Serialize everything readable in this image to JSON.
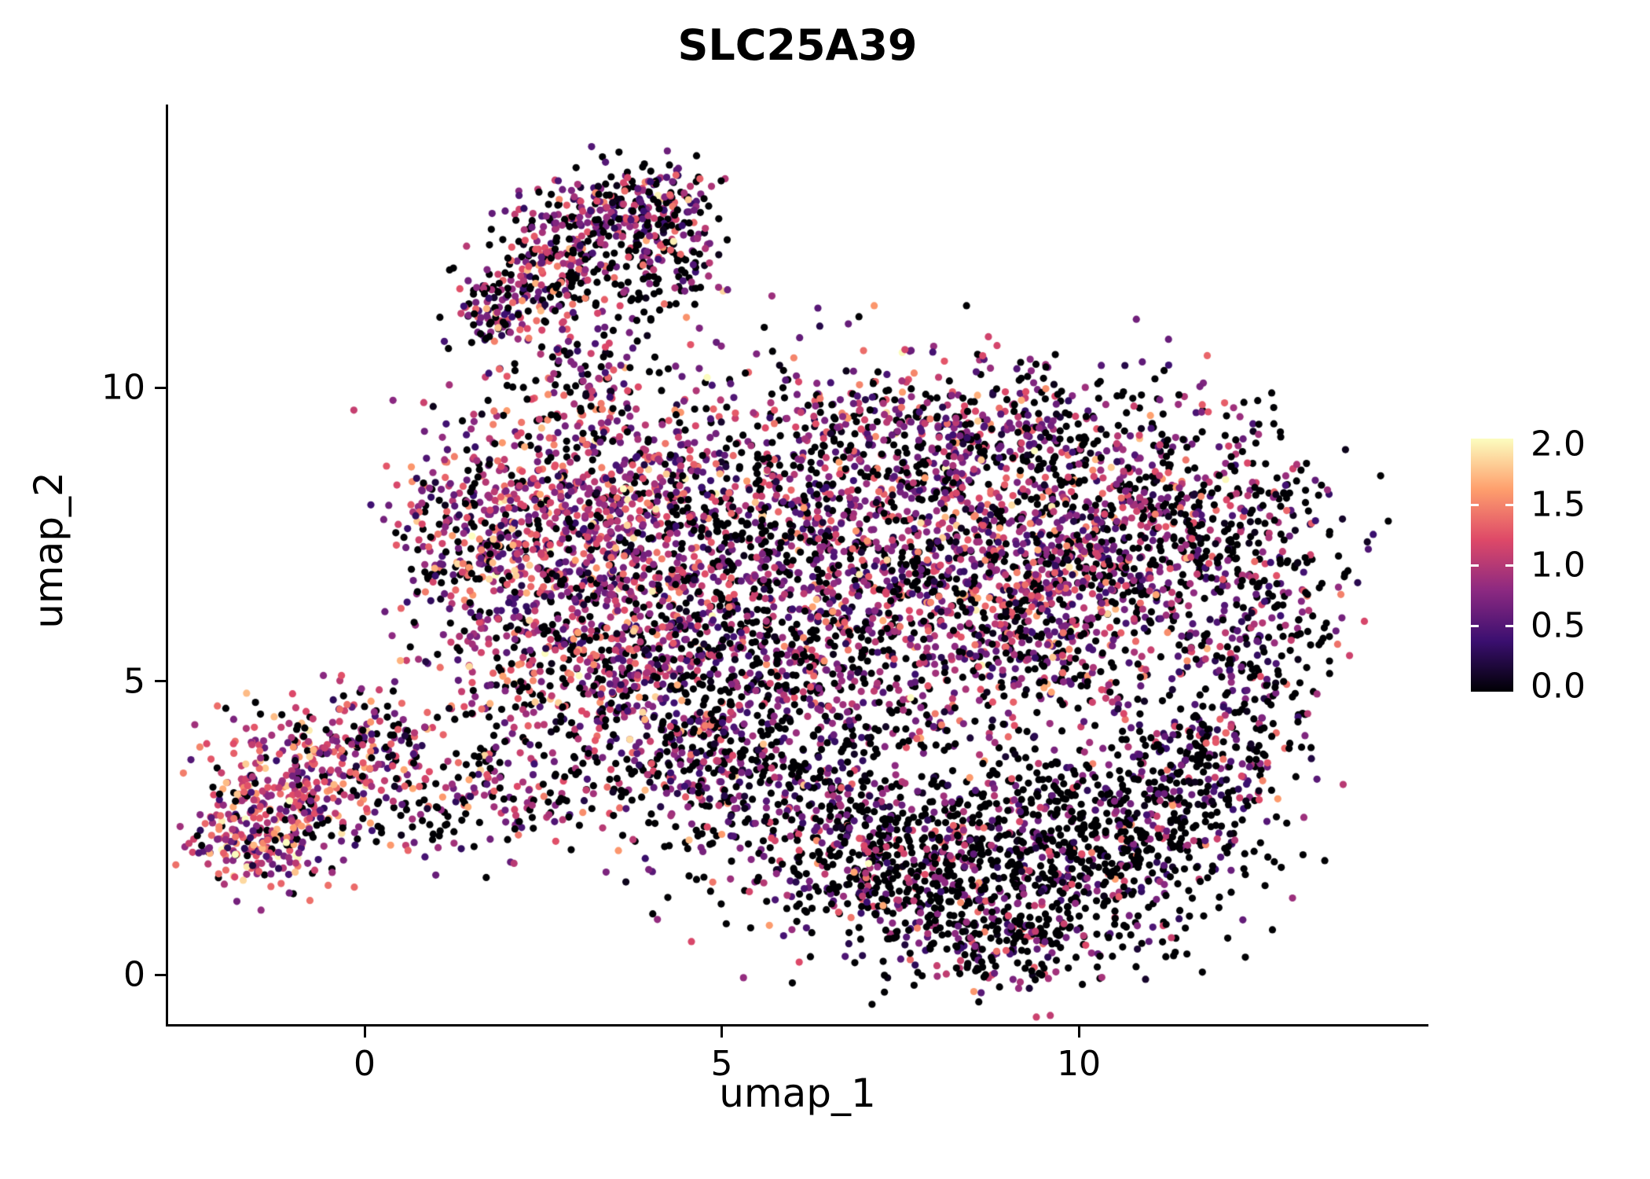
{
  "chart_data": {
    "type": "scatter",
    "subtype": "umap-feature-plot",
    "title": "SLC25A39",
    "xlabel": "umap_1",
    "ylabel": "umap_2",
    "xlim": [
      -2.75,
      14.85
    ],
    "ylim": [
      -0.8,
      14.8
    ],
    "xticks": {
      "values": [
        0,
        5,
        10
      ],
      "labels": [
        "0",
        "5",
        "10"
      ]
    },
    "yticks": {
      "values": [
        0,
        5,
        10
      ],
      "labels": [
        "0",
        "5",
        "10"
      ]
    },
    "grid": false,
    "legend_position": "right",
    "point_radius_px": 4.6,
    "seed": 42,
    "colorbar": {
      "vmin": 0.0,
      "vmax": 2.0,
      "tick_values": [
        0.0,
        0.5,
        1.0,
        1.5,
        2.0
      ],
      "tick_labels": [
        "0.0",
        "0.5",
        "1.0",
        "1.5",
        "2.0"
      ],
      "colormap": "magma",
      "stops": [
        {
          "t": 0.0,
          "color": "#000004"
        },
        {
          "t": 0.2,
          "color": "#3B0F70"
        },
        {
          "t": 0.4,
          "color": "#8C2981"
        },
        {
          "t": 0.6,
          "color": "#DE4968"
        },
        {
          "t": 0.8,
          "color": "#FE9F6D"
        },
        {
          "t": 1.0,
          "color": "#FCFDBF"
        }
      ]
    },
    "clusters": [
      {
        "region": "left-island-core",
        "cx": -1.35,
        "cy": 2.85,
        "sx": 0.55,
        "sy": 0.72,
        "n": 260,
        "zero_frac": 0.15,
        "mean": 1.05,
        "sd": 0.42
      },
      {
        "region": "left-island-upper",
        "cx": -0.45,
        "cy": 3.45,
        "sx": 0.6,
        "sy": 0.55,
        "n": 170,
        "zero_frac": 0.18,
        "mean": 1.0,
        "sd": 0.42
      },
      {
        "region": "left-island-fringe",
        "cx": 0.2,
        "cy": 4.1,
        "sx": 0.45,
        "sy": 0.38,
        "n": 70,
        "zero_frac": 0.35,
        "mean": 0.9,
        "sd": 0.4
      },
      {
        "region": "left-island-lower",
        "cx": -1.6,
        "cy": 2.2,
        "sx": 0.45,
        "sy": 0.4,
        "n": 90,
        "zero_frac": 0.15,
        "mean": 1.1,
        "sd": 0.45
      },
      {
        "region": "top-arm-base",
        "cx": 1.75,
        "cy": 11.3,
        "sx": 0.33,
        "sy": 0.33,
        "n": 90,
        "zero_frac": 0.3,
        "mean": 0.85,
        "sd": 0.4
      },
      {
        "region": "top-arm-mid",
        "cx": 2.45,
        "cy": 12.0,
        "sx": 0.42,
        "sy": 0.5,
        "n": 150,
        "zero_frac": 0.28,
        "mean": 0.9,
        "sd": 0.42
      },
      {
        "region": "top-arm-upper",
        "cx": 3.2,
        "cy": 12.85,
        "sx": 0.5,
        "sy": 0.42,
        "n": 170,
        "zero_frac": 0.3,
        "mean": 0.85,
        "sd": 0.42
      },
      {
        "region": "top-arm-tip",
        "cx": 4.0,
        "cy": 13.1,
        "sx": 0.45,
        "sy": 0.33,
        "n": 130,
        "zero_frac": 0.32,
        "mean": 0.85,
        "sd": 0.4
      },
      {
        "region": "top-arm-hook",
        "cx": 4.4,
        "cy": 12.35,
        "sx": 0.33,
        "sy": 0.45,
        "n": 90,
        "zero_frac": 0.4,
        "mean": 0.8,
        "sd": 0.4
      },
      {
        "region": "top-arm-scatter",
        "cx": 3.7,
        "cy": 11.7,
        "sx": 0.55,
        "sy": 0.45,
        "n": 70,
        "zero_frac": 0.65,
        "mean": 0.7,
        "sd": 0.35
      },
      {
        "region": "neck",
        "cx": 2.95,
        "cy": 10.4,
        "sx": 0.5,
        "sy": 0.5,
        "n": 80,
        "zero_frac": 0.45,
        "mean": 0.8,
        "sd": 0.4
      },
      {
        "region": "main-left-upper",
        "cx": 3.0,
        "cy": 7.9,
        "sx": 1.05,
        "sy": 1.1,
        "n": 850,
        "zero_frac": 0.22,
        "mean": 0.95,
        "sd": 0.42
      },
      {
        "region": "main-left-lower",
        "cx": 3.3,
        "cy": 5.6,
        "sx": 1.1,
        "sy": 0.95,
        "n": 550,
        "zero_frac": 0.3,
        "mean": 0.9,
        "sd": 0.42
      },
      {
        "region": "main-left-edge",
        "cx": 1.35,
        "cy": 7.2,
        "sx": 0.5,
        "sy": 0.85,
        "n": 160,
        "zero_frac": 0.25,
        "mean": 1.0,
        "sd": 0.42
      },
      {
        "region": "main-center",
        "cx": 5.8,
        "cy": 7.3,
        "sx": 1.35,
        "sy": 1.45,
        "n": 900,
        "zero_frac": 0.38,
        "mean": 0.8,
        "sd": 0.4
      },
      {
        "region": "main-center-lower",
        "cx": 5.8,
        "cy": 4.9,
        "sx": 1.3,
        "sy": 0.9,
        "n": 420,
        "zero_frac": 0.45,
        "mean": 0.75,
        "sd": 0.38
      },
      {
        "region": "main-right-dense",
        "cx": 8.6,
        "cy": 7.5,
        "sx": 1.45,
        "sy": 1.3,
        "n": 1100,
        "zero_frac": 0.3,
        "mean": 0.9,
        "sd": 0.42
      },
      {
        "region": "main-top",
        "cx": 8.2,
        "cy": 9.5,
        "sx": 1.8,
        "sy": 0.5,
        "n": 300,
        "zero_frac": 0.45,
        "mean": 0.75,
        "sd": 0.38
      },
      {
        "region": "main-right-lobe",
        "cx": 11.0,
        "cy": 7.7,
        "sx": 1.0,
        "sy": 0.95,
        "n": 420,
        "zero_frac": 0.45,
        "mean": 0.78,
        "sd": 0.4
      },
      {
        "region": "main-far-right",
        "cx": 12.6,
        "cy": 6.3,
        "sx": 0.65,
        "sy": 1.35,
        "n": 330,
        "zero_frac": 0.52,
        "mean": 0.72,
        "sd": 0.38
      },
      {
        "region": "main-mid-right",
        "cx": 9.6,
        "cy": 5.9,
        "sx": 1.0,
        "sy": 0.85,
        "n": 380,
        "zero_frac": 0.35,
        "mean": 0.9,
        "sd": 0.42
      },
      {
        "region": "bottom-right-dark",
        "cx": 8.9,
        "cy": 1.9,
        "sx": 1.6,
        "sy": 1.0,
        "n": 850,
        "zero_frac": 0.66,
        "mean": 0.75,
        "sd": 0.38
      },
      {
        "region": "bottom-right-mid",
        "cx": 10.7,
        "cy": 2.7,
        "sx": 0.9,
        "sy": 0.8,
        "n": 300,
        "zero_frac": 0.62,
        "mean": 0.72,
        "sd": 0.38
      },
      {
        "region": "right-arc",
        "cx": 11.8,
        "cy": 3.7,
        "sx": 0.6,
        "sy": 0.7,
        "n": 170,
        "zero_frac": 0.55,
        "mean": 0.72,
        "sd": 0.38
      },
      {
        "region": "bottom-center",
        "cx": 6.3,
        "cy": 2.9,
        "sx": 1.3,
        "sy": 0.7,
        "n": 330,
        "zero_frac": 0.5,
        "mean": 0.8,
        "sd": 0.4
      },
      {
        "region": "bottom-center-low",
        "cx": 7.4,
        "cy": 1.6,
        "sx": 0.95,
        "sy": 0.55,
        "n": 240,
        "zero_frac": 0.55,
        "mean": 0.78,
        "sd": 0.38
      },
      {
        "region": "bottom-tip",
        "cx": 8.8,
        "cy": 0.55,
        "sx": 0.75,
        "sy": 0.35,
        "n": 130,
        "zero_frac": 0.58,
        "mean": 0.75,
        "sd": 0.38
      },
      {
        "region": "left-trail",
        "cx": 2.1,
        "cy": 3.4,
        "sx": 0.9,
        "sy": 0.55,
        "n": 170,
        "zero_frac": 0.45,
        "mean": 0.85,
        "sd": 0.4
      },
      {
        "region": "left-trail-low",
        "cx": 1.05,
        "cy": 2.6,
        "sx": 0.55,
        "sy": 0.4,
        "n": 60,
        "zero_frac": 0.5,
        "mean": 0.8,
        "sd": 0.4
      },
      {
        "region": "mid-bridge",
        "cx": 4.6,
        "cy": 3.9,
        "sx": 0.8,
        "sy": 0.6,
        "n": 210,
        "zero_frac": 0.45,
        "mean": 0.8,
        "sd": 0.4
      }
    ]
  }
}
